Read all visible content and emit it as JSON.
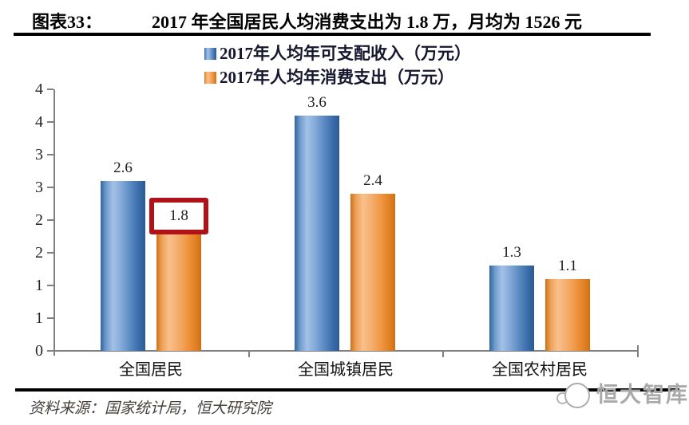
{
  "header": {
    "label": "图表33：",
    "title": "2017 年全国居民人均消费支出为 1.8 万，月均为 1526 元"
  },
  "legend": [
    {
      "label": "2017年人均年可支配收入（万元）",
      "color": "#4f81bd"
    },
    {
      "label": "2017年人均年消费支出（万元）",
      "color": "#f79646"
    }
  ],
  "chart_data": {
    "type": "bar",
    "categories": [
      "全国居民",
      "全国城镇居民",
      "全国农村居民"
    ],
    "series": [
      {
        "name": "2017年人均年可支配收入（万元）",
        "values": [
          2.6,
          3.6,
          1.3
        ],
        "labels": [
          "2.6",
          "3.6",
          "1.3"
        ],
        "color": "#4f81bd"
      },
      {
        "name": "2017年人均年消费支出（万元）",
        "values": [
          1.8,
          2.4,
          1.1
        ],
        "labels": [
          "1.8",
          "2.4",
          "1.1"
        ],
        "color": "#f79646"
      }
    ],
    "title": "2017 年全国居民人均消费支出为 1.8 万，月均为 1526 元",
    "xlabel": "",
    "ylabel": "",
    "ylim": [
      0,
      4
    ],
    "ytick_step": 0.5,
    "ytick_labels_top_to_bottom": [
      "4",
      "4",
      "3",
      "3",
      "2",
      "2",
      "1",
      "1",
      "0"
    ],
    "grid": false,
    "legend_position": "top-center",
    "annotation": {
      "type": "highlight-box",
      "series_index": 1,
      "category_index": 0,
      "label": "1.8",
      "border_color": "#b11217"
    }
  },
  "footer": {
    "source": "资料来源：国家统计局，恒大研究院",
    "logo_text": "恒大智库"
  }
}
